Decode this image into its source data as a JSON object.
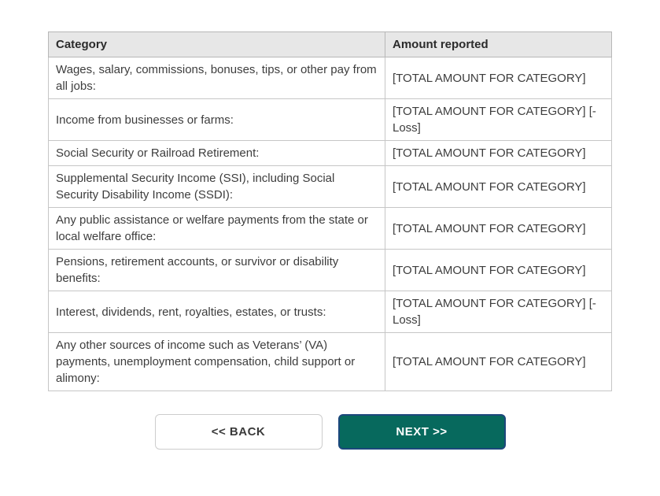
{
  "table": {
    "headers": [
      "Category",
      "Amount reported"
    ],
    "rows": [
      {
        "category": "Wages, salary, commissions, bonuses, tips, or other pay from all jobs:",
        "amount": "[TOTAL AMOUNT FOR CATEGORY]"
      },
      {
        "category": "Income from businesses or farms:",
        "amount": "[TOTAL AMOUNT FOR CATEGORY] [-Loss]"
      },
      {
        "category": "Social Security or Railroad Retirement:",
        "amount": "[TOTAL AMOUNT FOR CATEGORY]"
      },
      {
        "category": "Supplemental Security Income (SSI), including Social Security Disability Income (SSDI):",
        "amount": "[TOTAL AMOUNT FOR CATEGORY]"
      },
      {
        "category": "Any public assistance or welfare payments from the state or local welfare office:",
        "amount": "[TOTAL AMOUNT FOR CATEGORY]"
      },
      {
        "category": "Pensions, retirement accounts, or survivor or disability benefits:",
        "amount": "[TOTAL AMOUNT FOR CATEGORY]"
      },
      {
        "category": "Interest, dividends, rent, royalties, estates, or trusts:",
        "amount": "[TOTAL AMOUNT FOR CATEGORY] [-Loss]"
      },
      {
        "category": "Any other sources of income such as Veterans’ (VA) payments, unemployment compensation, child support or alimony:",
        "amount": "[TOTAL AMOUNT FOR CATEGORY]"
      }
    ]
  },
  "buttons": {
    "back_label": "<< BACK",
    "next_label": "NEXT >>"
  },
  "colors": {
    "next_button_bg": "#07695d",
    "next_button_border": "#1c477c",
    "next_button_text": "#ffffff",
    "back_button_bg": "#ffffff",
    "back_button_border": "#cdcdcd",
    "header_bg": "#e7e7e7",
    "table_border": "#c6c6c6",
    "text": "#3d3d3d"
  }
}
